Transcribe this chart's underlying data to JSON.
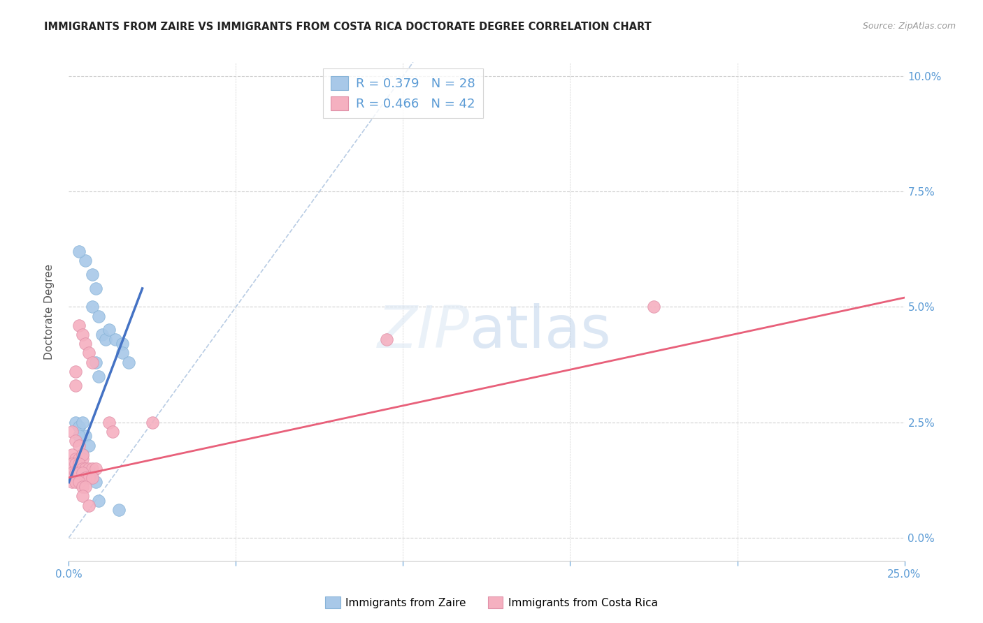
{
  "title": "IMMIGRANTS FROM ZAIRE VS IMMIGRANTS FROM COSTA RICA DOCTORATE DEGREE CORRELATION CHART",
  "source": "Source: ZipAtlas.com",
  "ylabel": "Doctorate Degree",
  "xlim": [
    0.0,
    0.25
  ],
  "ylim": [
    -0.005,
    0.103
  ],
  "xticks": [
    0.0,
    0.05,
    0.1,
    0.15,
    0.2,
    0.25
  ],
  "yticks": [
    0.0,
    0.025,
    0.05,
    0.075,
    0.1
  ],
  "legend_blue_R": "R = 0.379",
  "legend_blue_N": "N = 28",
  "legend_pink_R": "R = 0.466",
  "legend_pink_N": "N = 42",
  "blue_color": "#a8c8e8",
  "pink_color": "#f5b0c0",
  "blue_line_color": "#4472c4",
  "pink_line_color": "#e8607a",
  "diagonal_color": "#b8cce4",
  "blue_points": [
    [
      0.002,
      0.025
    ],
    [
      0.003,
      0.024
    ],
    [
      0.004,
      0.025
    ],
    [
      0.005,
      0.022
    ],
    [
      0.003,
      0.022
    ],
    [
      0.006,
      0.02
    ],
    [
      0.004,
      0.018
    ],
    [
      0.005,
      0.06
    ],
    [
      0.007,
      0.057
    ],
    [
      0.008,
      0.054
    ],
    [
      0.007,
      0.05
    ],
    [
      0.009,
      0.048
    ],
    [
      0.01,
      0.044
    ],
    [
      0.011,
      0.043
    ],
    [
      0.008,
      0.038
    ],
    [
      0.009,
      0.035
    ],
    [
      0.003,
      0.062
    ],
    [
      0.012,
      0.045
    ],
    [
      0.014,
      0.043
    ],
    [
      0.016,
      0.042
    ],
    [
      0.016,
      0.04
    ],
    [
      0.018,
      0.038
    ],
    [
      0.003,
      0.016
    ],
    [
      0.005,
      0.015
    ],
    [
      0.007,
      0.014
    ],
    [
      0.008,
      0.012
    ],
    [
      0.009,
      0.008
    ],
    [
      0.015,
      0.006
    ]
  ],
  "pink_points": [
    [
      0.001,
      0.023
    ],
    [
      0.002,
      0.021
    ],
    [
      0.003,
      0.02
    ],
    [
      0.001,
      0.018
    ],
    [
      0.002,
      0.017
    ],
    [
      0.003,
      0.017
    ],
    [
      0.004,
      0.017
    ],
    [
      0.004,
      0.018
    ],
    [
      0.001,
      0.016
    ],
    [
      0.002,
      0.016
    ],
    [
      0.003,
      0.016
    ],
    [
      0.004,
      0.015
    ],
    [
      0.005,
      0.015
    ],
    [
      0.006,
      0.015
    ],
    [
      0.007,
      0.015
    ],
    [
      0.008,
      0.015
    ],
    [
      0.001,
      0.014
    ],
    [
      0.002,
      0.014
    ],
    [
      0.003,
      0.014
    ],
    [
      0.004,
      0.014
    ],
    [
      0.005,
      0.013
    ],
    [
      0.006,
      0.013
    ],
    [
      0.007,
      0.013
    ],
    [
      0.001,
      0.012
    ],
    [
      0.002,
      0.012
    ],
    [
      0.003,
      0.012
    ],
    [
      0.004,
      0.011
    ],
    [
      0.005,
      0.011
    ],
    [
      0.003,
      0.046
    ],
    [
      0.004,
      0.044
    ],
    [
      0.005,
      0.042
    ],
    [
      0.006,
      0.04
    ],
    [
      0.007,
      0.038
    ],
    [
      0.002,
      0.036
    ],
    [
      0.002,
      0.033
    ],
    [
      0.012,
      0.025
    ],
    [
      0.013,
      0.023
    ],
    [
      0.025,
      0.025
    ],
    [
      0.095,
      0.043
    ],
    [
      0.175,
      0.05
    ],
    [
      0.004,
      0.009
    ],
    [
      0.006,
      0.007
    ]
  ],
  "blue_trendline": [
    [
      0.0,
      0.012
    ],
    [
      0.022,
      0.054
    ]
  ],
  "pink_trendline": [
    [
      0.0,
      0.013
    ],
    [
      0.25,
      0.052
    ]
  ],
  "diagonal_line": [
    [
      0.0,
      0.0
    ],
    [
      0.103,
      0.103
    ]
  ]
}
